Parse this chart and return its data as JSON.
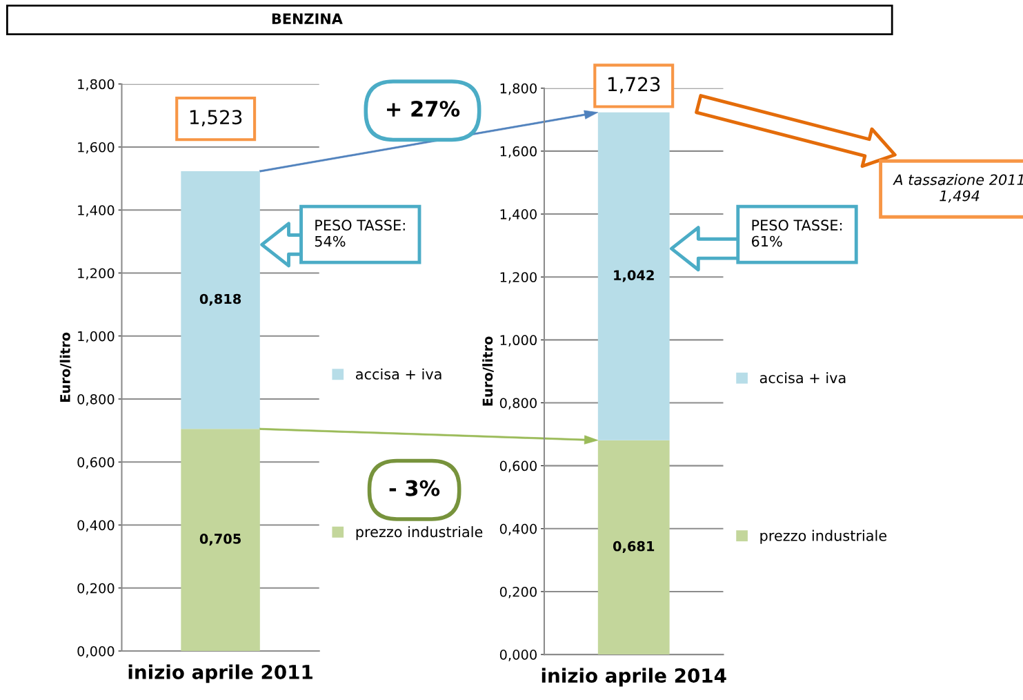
{
  "chart_data": [
    {
      "type": "bar",
      "title": "BENZINA",
      "ylabel": "Euro/litro",
      "stacked": true,
      "categories": [
        "inizio aprile 2011"
      ],
      "series": [
        {
          "name": "prezzo industriale",
          "color": "#c3d69b",
          "values": [
            0.705
          ],
          "value_labels": [
            "0,705"
          ]
        },
        {
          "name": "accisa + iva",
          "color": "#b7dde8",
          "values": [
            0.818
          ],
          "value_labels": [
            "0,818"
          ]
        }
      ],
      "totals": [
        "1,523"
      ],
      "ylim": [
        0,
        1.8
      ],
      "yticks": [
        {
          "value": 0,
          "label": "0,000"
        },
        {
          "value": 0.2,
          "label": "0,200"
        },
        {
          "value": 0.4,
          "label": "0,400"
        },
        {
          "value": 0.6,
          "label": "0,600"
        },
        {
          "value": 0.8,
          "label": "0,800"
        },
        {
          "value": 1.0,
          "label": "1,000"
        },
        {
          "value": 1.2,
          "label": "1,200"
        },
        {
          "value": 1.4,
          "label": "1,400"
        },
        {
          "value": 1.6,
          "label": "1,600"
        },
        {
          "value": 1.8,
          "label": "1,800"
        }
      ],
      "grid": "y",
      "legend": "right",
      "annotations": [
        "+ 27%",
        "PESO TASSE:\n54%",
        "- 3%"
      ]
    },
    {
      "type": "bar",
      "ylabel": "Euro/litro",
      "stacked": true,
      "categories": [
        "inizio aprile 2014"
      ],
      "series": [
        {
          "name": "prezzo industriale",
          "color": "#c3d69b",
          "values": [
            0.681
          ],
          "value_labels": [
            "0,681"
          ]
        },
        {
          "name": "accisa + iva",
          "color": "#b7dde8",
          "values": [
            1.042
          ],
          "value_labels": [
            "1,042"
          ]
        }
      ],
      "totals": [
        "1,723"
      ],
      "ylim": [
        0,
        1.8
      ],
      "yticks": [
        {
          "value": 0,
          "label": "0,000"
        },
        {
          "value": 0.2,
          "label": "0,200"
        },
        {
          "value": 0.4,
          "label": "0,400"
        },
        {
          "value": 0.6,
          "label": "0,600"
        },
        {
          "value": 0.8,
          "label": "0,800"
        },
        {
          "value": 1.0,
          "label": "1,000"
        },
        {
          "value": 1.2,
          "label": "1,200"
        },
        {
          "value": 1.4,
          "label": "1,400"
        },
        {
          "value": 1.6,
          "label": "1,600"
        },
        {
          "value": 1.8,
          "label": "1,800"
        }
      ],
      "grid": "y",
      "legend": "right",
      "annotations": [
        "PESO TASSE:\n61%",
        "A tassazione 2011\n1,494"
      ]
    }
  ]
}
